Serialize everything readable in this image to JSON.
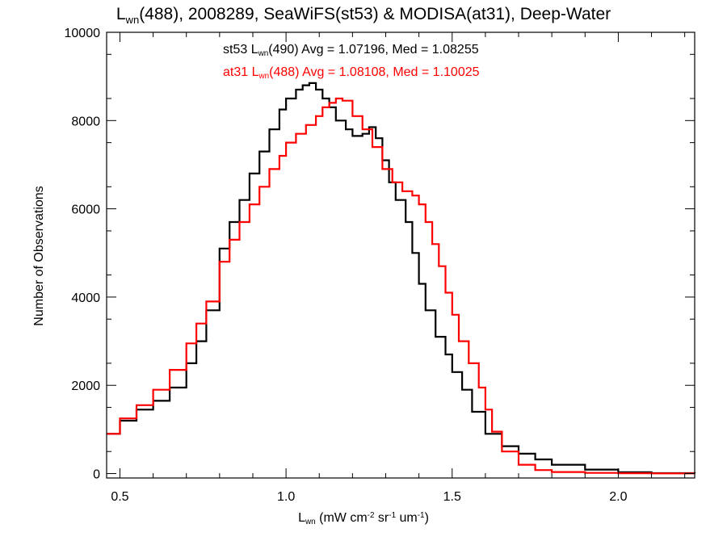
{
  "chart_data": {
    "type": "line",
    "step": true,
    "title": {
      "main": "L",
      "main_sub": "wn",
      "rest": "(488), 2008289, SeaWiFS(st53) & MODISA(at31), Deep-Water"
    },
    "xlabel": {
      "main": "L",
      "main_sub": "wn",
      "p1": " (mW cm",
      "sup1": "-2",
      "p2": " sr",
      "sup2": "-1",
      "p3": " um",
      "sup3": "-1",
      "p4": ")"
    },
    "ylabel": "Number of Observations",
    "xlim": [
      0.46,
      2.23
    ],
    "ylim": [
      -100,
      10000
    ],
    "xticks": [
      0.5,
      1.0,
      1.5,
      2.0
    ],
    "xtick_labels": [
      "0.5",
      "1.0",
      "1.5",
      "2.0"
    ],
    "yticks": [
      0,
      2000,
      4000,
      6000,
      8000,
      10000
    ],
    "ytick_labels": [
      "0",
      "2000",
      "4000",
      "6000",
      "8000",
      "10000"
    ],
    "grid": false,
    "series": [
      {
        "name": "st53",
        "color": "#000000",
        "legend": {
          "a": "st53 L",
          "sub": "wn",
          "b": "(490) Avg = 1.07196, Med = 1.08255"
        },
        "x": [
          0.46,
          0.5,
          0.55,
          0.6,
          0.65,
          0.7,
          0.73,
          0.76,
          0.8,
          0.83,
          0.86,
          0.89,
          0.92,
          0.95,
          0.98,
          1.0,
          1.03,
          1.05,
          1.07,
          1.09,
          1.11,
          1.13,
          1.15,
          1.18,
          1.2,
          1.23,
          1.25,
          1.27,
          1.29,
          1.31,
          1.33,
          1.36,
          1.38,
          1.4,
          1.42,
          1.45,
          1.48,
          1.5,
          1.53,
          1.56,
          1.6,
          1.65,
          1.7,
          1.75,
          1.8,
          1.9,
          2.0,
          2.1,
          2.23
        ],
        "values": [
          900,
          1200,
          1450,
          1650,
          1950,
          2500,
          3000,
          3700,
          5100,
          5700,
          6200,
          6800,
          7300,
          7800,
          8250,
          8500,
          8700,
          8800,
          8850,
          8700,
          8500,
          8300,
          8000,
          7800,
          7650,
          7700,
          7850,
          7600,
          7100,
          6600,
          6200,
          5700,
          5000,
          4300,
          3700,
          3100,
          2700,
          2300,
          1900,
          1400,
          900,
          620,
          450,
          320,
          200,
          90,
          30,
          10,
          5
        ]
      },
      {
        "name": "at31",
        "color": "#ff0000",
        "legend": {
          "a": "at31 L",
          "sub": "wn",
          "b": "(488) Avg = 1.08108, Med = 1.10025"
        },
        "x": [
          0.46,
          0.5,
          0.55,
          0.6,
          0.65,
          0.7,
          0.73,
          0.76,
          0.8,
          0.83,
          0.86,
          0.89,
          0.92,
          0.95,
          0.98,
          1.0,
          1.03,
          1.06,
          1.09,
          1.11,
          1.13,
          1.15,
          1.17,
          1.2,
          1.23,
          1.26,
          1.29,
          1.32,
          1.35,
          1.38,
          1.4,
          1.42,
          1.44,
          1.46,
          1.48,
          1.5,
          1.52,
          1.55,
          1.58,
          1.6,
          1.62,
          1.65,
          1.7,
          1.75,
          1.8,
          1.9,
          2.0,
          2.1,
          2.23
        ],
        "values": [
          900,
          1250,
          1550,
          1900,
          2350,
          2950,
          3400,
          3900,
          4800,
          5300,
          5700,
          6100,
          6500,
          6900,
          7200,
          7500,
          7700,
          7900,
          8100,
          8300,
          8400,
          8500,
          8450,
          8100,
          7800,
          7400,
          6900,
          6600,
          6400,
          6300,
          6100,
          5700,
          5200,
          4700,
          4100,
          3600,
          3000,
          2500,
          1950,
          1450,
          950,
          500,
          200,
          80,
          35,
          15,
          8,
          5,
          5
        ]
      }
    ]
  }
}
